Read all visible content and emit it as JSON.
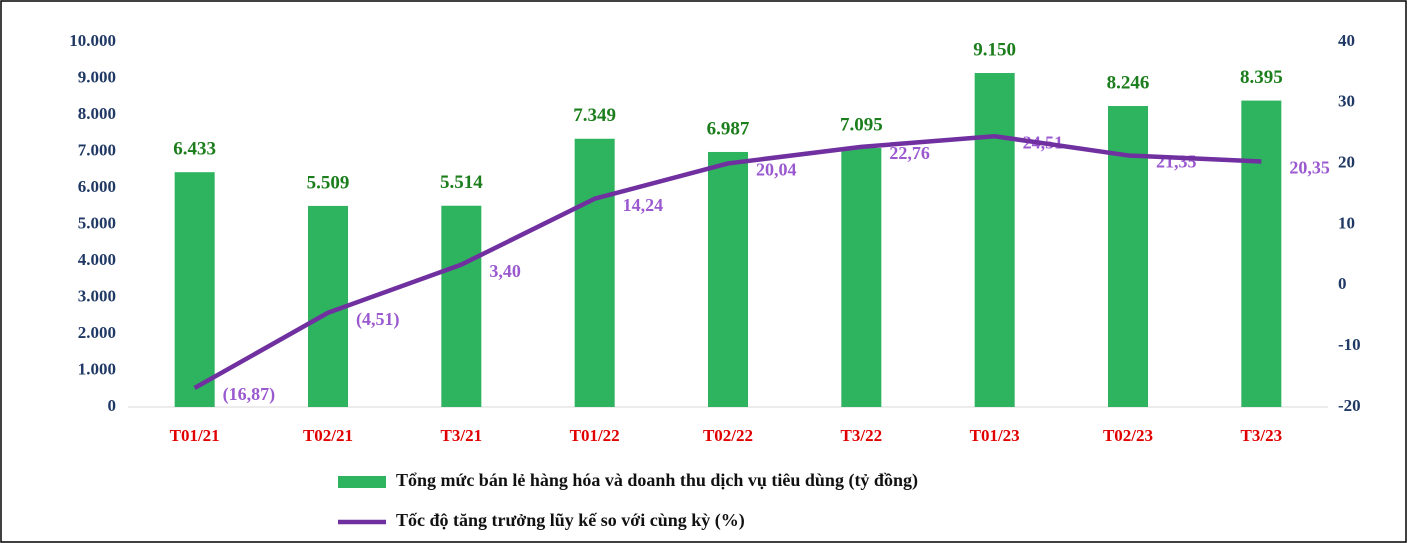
{
  "chart_data": {
    "type": "bar",
    "categories": [
      "T01/21",
      "T02/21",
      "T3/21",
      "T01/22",
      "T02/22",
      "T3/22",
      "T01/23",
      "T02/23",
      "T3/23"
    ],
    "series": [
      {
        "name": "Tổng mức bán lẻ hàng hóa và doanh thu dịch vụ tiêu dùng (tỷ đồng)",
        "type": "bar",
        "color": "#2eb35f",
        "values": [
          6433,
          5509,
          5514,
          7349,
          6987,
          7095,
          9150,
          8246,
          8395
        ],
        "value_labels": [
          "6.433",
          "5.509",
          "5.514",
          "7.349",
          "6.987",
          "7.095",
          "9.150",
          "8.246",
          "8.395"
        ]
      },
      {
        "name": "Tốc độ tăng trưởng lũy kế so với cùng kỳ (%)",
        "type": "line",
        "axis": "y2",
        "color": "#7030a0",
        "values": [
          -16.87,
          -4.51,
          3.4,
          14.24,
          20.04,
          22.76,
          24.51,
          21.35,
          20.35
        ],
        "value_labels": [
          "(16,87)",
          "(4,51)",
          "3,40",
          "14,24",
          "20,04",
          "22,76",
          "24,51",
          "21,35",
          "20,35"
        ]
      }
    ],
    "ylim": [
      0,
      10000
    ],
    "yticks": [
      0,
      {
        "value": 1000,
        "label": "1.000"
      },
      {
        "value": 2000,
        "label": "2.000"
      },
      {
        "value": 3000,
        "label": "3.000"
      },
      {
        "value": 4000,
        "label": "4.000"
      },
      {
        "value": 5000,
        "label": "5.000"
      },
      {
        "value": 6000,
        "label": "6.000"
      },
      {
        "value": 7000,
        "label": "7.000"
      },
      {
        "value": 8000,
        "label": "8.000"
      },
      {
        "value": 9000,
        "label": "9.000"
      },
      {
        "value": 10000,
        "label": "10.000"
      }
    ],
    "y2lim": [
      -20,
      40
    ],
    "y2ticks": [
      -20,
      -10,
      0,
      10,
      20,
      30,
      40
    ],
    "grid": false
  }
}
